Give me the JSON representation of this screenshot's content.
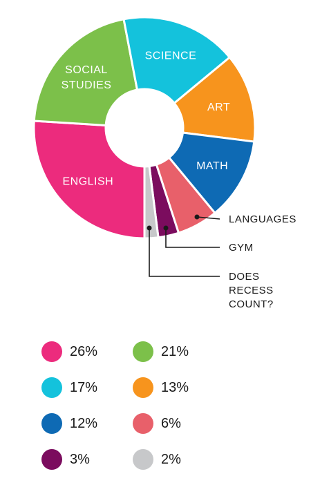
{
  "chart_data": {
    "type": "pie",
    "slices": [
      {
        "label": "ENGLISH",
        "value": 26,
        "color": "#ec2b7d"
      },
      {
        "label": "SOCIAL STUDIES",
        "value": 21,
        "color": "#7cc04a"
      },
      {
        "label": "SCIENCE",
        "value": 17,
        "color": "#14c2dc"
      },
      {
        "label": "ART",
        "value": 13,
        "color": "#f7941d"
      },
      {
        "label": "MATH",
        "value": 12,
        "color": "#0e6ab4"
      },
      {
        "label": "LANGUAGES",
        "value": 6,
        "color": "#e8606a"
      },
      {
        "label": "GYM",
        "value": 3,
        "color": "#7b0c5e"
      },
      {
        "label": "DOES RECESS COUNT?",
        "value": 2,
        "color": "#c7c8ca"
      }
    ],
    "legend": [
      {
        "text": "26%",
        "color": "#ec2b7d"
      },
      {
        "text": "21%",
        "color": "#7cc04a"
      },
      {
        "text": "17%",
        "color": "#14c2dc"
      },
      {
        "text": "13%",
        "color": "#f7941d"
      },
      {
        "text": "12%",
        "color": "#0e6ab4"
      },
      {
        "text": "6%",
        "color": "#e8606a"
      },
      {
        "text": "3%",
        "color": "#7b0c5e"
      },
      {
        "text": "2%",
        "color": "#c7c8ca"
      }
    ]
  }
}
